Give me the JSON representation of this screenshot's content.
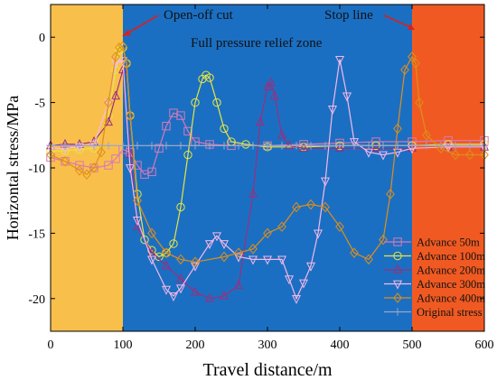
{
  "chart_data": {
    "type": "line",
    "xlabel": "Travel distance/m",
    "ylabel": "Horizontal stress/MPa",
    "xlim": [
      0,
      600
    ],
    "ylim": [
      -22.5,
      2.5
    ],
    "xticks": [
      "0",
      "100",
      "200",
      "300",
      "400",
      "500",
      "600"
    ],
    "yticks": [
      "0",
      "-5",
      "-10",
      "-15",
      "-20"
    ],
    "xtick_values": [
      0,
      100,
      200,
      300,
      400,
      500,
      600
    ],
    "ytick_values": [
      0,
      -5,
      -10,
      -15,
      -20
    ],
    "grid": false,
    "legend_position": "bottom-right",
    "zones": [
      {
        "from": 0,
        "to": 100,
        "color": "#f9bf4b"
      },
      {
        "from": 100,
        "to": 500,
        "color": "#1b6fc2"
      },
      {
        "from": 500,
        "to": 600,
        "color": "#f05a22"
      }
    ],
    "annotations": {
      "open_off_cut": "Open-off cut",
      "stop_line": "Stop line",
      "zone_label": "Full pressure relief zone"
    },
    "series": [
      {
        "name": "Advance 50m",
        "color": "#d978b7",
        "marker": "square",
        "x": [
          0,
          20,
          40,
          60,
          80,
          90,
          100,
          110,
          120,
          130,
          140,
          150,
          160,
          170,
          180,
          190,
          200,
          220,
          250,
          300,
          350,
          400,
          450,
          500,
          550,
          600
        ],
        "y": [
          -9.2,
          -9.5,
          -9.8,
          -10.0,
          -9.8,
          -9.3,
          -8.6,
          -8.8,
          -9.8,
          -10.5,
          -10.3,
          -8.5,
          -6.8,
          -5.8,
          -6.0,
          -7.2,
          -8.0,
          -8.2,
          -8.3,
          -8.3,
          -8.2,
          -8.1,
          -8.0,
          -8.0,
          -7.9,
          -7.9
        ]
      },
      {
        "name": "Advance 100m",
        "color": "#e6e640",
        "marker": "circle",
        "x": [
          0,
          20,
          40,
          60,
          80,
          90,
          95,
          100,
          105,
          110,
          120,
          130,
          140,
          150,
          160,
          170,
          180,
          190,
          200,
          210,
          215,
          220,
          230,
          240,
          250,
          270,
          300,
          350,
          400,
          450,
          500,
          550,
          600
        ],
        "y": [
          -8.7,
          -8.7,
          -8.6,
          -8.5,
          -6.0,
          -2.5,
          -1.0,
          -0.8,
          -2.0,
          -6.0,
          -12.0,
          -15.5,
          -16.3,
          -16.8,
          -16.5,
          -15.8,
          -13.0,
          -9.0,
          -5.0,
          -3.2,
          -2.9,
          -3.1,
          -5.0,
          -7.0,
          -8.0,
          -8.2,
          -8.4,
          -8.4,
          -8.3,
          -8.3,
          -8.3,
          -8.2,
          -8.2
        ]
      },
      {
        "name": "Advance 200m",
        "color": "#9b2f7e",
        "marker": "triangle-up",
        "x": [
          0,
          20,
          40,
          60,
          80,
          90,
          100,
          110,
          120,
          140,
          160,
          180,
          200,
          220,
          240,
          260,
          280,
          290,
          300,
          305,
          310,
          320,
          330,
          350,
          400,
          450,
          500,
          550,
          600
        ],
        "y": [
          -8.3,
          -8.2,
          -8.2,
          -8.0,
          -6.5,
          -4.5,
          -2.5,
          -9.0,
          -14.5,
          -16.5,
          -17.5,
          -18.5,
          -19.5,
          -20.0,
          -19.8,
          -19.0,
          -12.0,
          -6.5,
          -3.8,
          -3.5,
          -4.5,
          -7.5,
          -8.3,
          -8.5,
          -8.5,
          -8.5,
          -8.5,
          -8.4,
          -8.4
        ]
      },
      {
        "name": "Advance 300m",
        "color": "#f5b8e8",
        "marker": "triangle-down",
        "x": [
          0,
          20,
          40,
          60,
          80,
          90,
          100,
          110,
          120,
          140,
          160,
          170,
          180,
          200,
          220,
          230,
          240,
          260,
          280,
          300,
          320,
          330,
          340,
          350,
          360,
          370,
          380,
          390,
          400,
          410,
          420,
          440,
          460,
          480,
          500,
          550,
          600
        ],
        "y": [
          -8.5,
          -8.5,
          -8.4,
          -8.2,
          -5.0,
          -2.0,
          -1.8,
          -10.0,
          -14.0,
          -17.0,
          -19.3,
          -19.8,
          -19.2,
          -17.5,
          -15.8,
          -15.2,
          -15.8,
          -16.8,
          -17.0,
          -17.0,
          -17.0,
          -18.5,
          -20.0,
          -18.8,
          -17.5,
          -15.0,
          -11.0,
          -5.5,
          -1.7,
          -4.5,
          -8.0,
          -8.8,
          -9.0,
          -8.8,
          -8.5,
          -8.4,
          -8.4
        ]
      },
      {
        "name": "Advance 400m",
        "color": "#de8e1a",
        "marker": "diamond",
        "x": [
          0,
          20,
          40,
          50,
          60,
          70,
          80,
          90,
          95,
          100,
          105,
          110,
          120,
          140,
          160,
          180,
          200,
          240,
          260,
          280,
          300,
          320,
          340,
          360,
          380,
          400,
          420,
          440,
          460,
          470,
          480,
          490,
          500,
          505,
          510,
          520,
          540,
          560,
          580,
          600
        ],
        "y": [
          -9.0,
          -9.5,
          -10.2,
          -10.5,
          -10.0,
          -8.8,
          -5.0,
          -1.5,
          -0.8,
          -0.7,
          -2.0,
          -6.0,
          -12.5,
          -15.0,
          -16.5,
          -17.0,
          -17.2,
          -16.8,
          -16.5,
          -16.2,
          -15.0,
          -14.5,
          -13.0,
          -12.8,
          -13.0,
          -14.5,
          -16.5,
          -17.0,
          -15.5,
          -12.0,
          -7.0,
          -2.5,
          -1.5,
          -2.0,
          -5.0,
          -7.5,
          -8.5,
          -9.0,
          -9.0,
          -9.0
        ]
      },
      {
        "name": "Original stress",
        "color": "#9aa7c8",
        "marker": "cross",
        "x": [
          0,
          20,
          40,
          60,
          80,
          100,
          120,
          140,
          160,
          180,
          200,
          220,
          240,
          260,
          280,
          300,
          320,
          340,
          360,
          380,
          400,
          420,
          440,
          460,
          480,
          500,
          520,
          540,
          560,
          580,
          600
        ],
        "y": [
          -8.3,
          -8.3,
          -8.3,
          -8.3,
          -8.3,
          -8.3,
          -8.3,
          -8.3,
          -8.3,
          -8.3,
          -8.3,
          -8.3,
          -8.3,
          -8.3,
          -8.3,
          -8.3,
          -8.3,
          -8.3,
          -8.3,
          -8.3,
          -8.3,
          -8.3,
          -8.3,
          -8.3,
          -8.3,
          -8.3,
          -8.3,
          -8.3,
          -8.3,
          -8.3,
          -8.3
        ]
      }
    ]
  }
}
